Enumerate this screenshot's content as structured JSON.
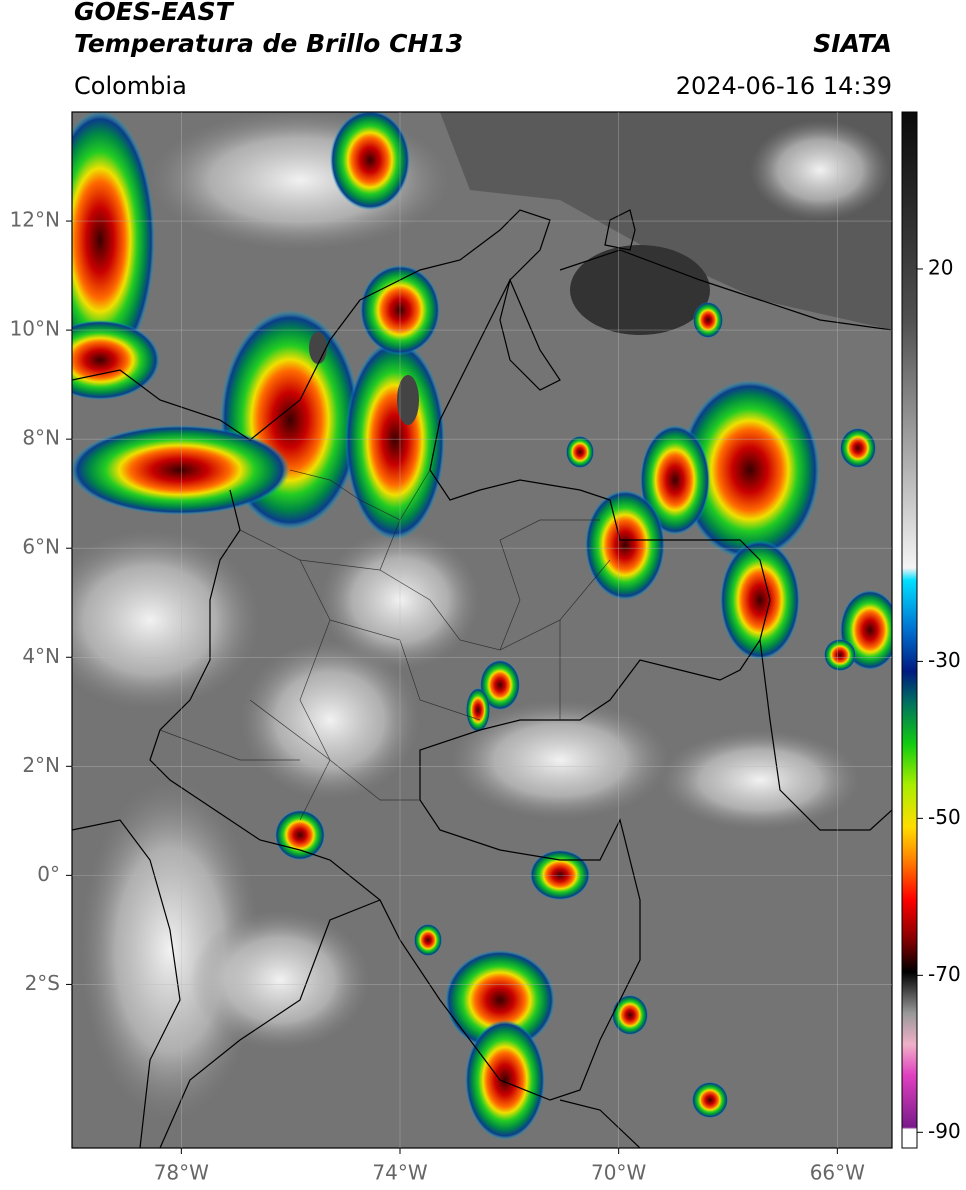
{
  "header": {
    "title": "GOES-EAST",
    "subtitle": "Temperatura de Brillo CH13",
    "source": "SIATA",
    "region": "Colombia",
    "timestamp": "2024-06-16 14:39"
  },
  "map": {
    "xlim": [
      -80,
      -65
    ],
    "ylim": [
      -5,
      14
    ],
    "xticks": [
      {
        "value": -78,
        "label": "78°W"
      },
      {
        "value": -74,
        "label": "74°W"
      },
      {
        "value": -70,
        "label": "70°W"
      },
      {
        "value": -66,
        "label": "66°W"
      }
    ],
    "yticks": [
      {
        "value": 12,
        "label": "12°N"
      },
      {
        "value": 10,
        "label": "10°N"
      },
      {
        "value": 8,
        "label": "8°N"
      },
      {
        "value": 6,
        "label": "6°N"
      },
      {
        "value": 4,
        "label": "4°N"
      },
      {
        "value": 2,
        "label": "2°N"
      },
      {
        "value": 0,
        "label": "0°"
      },
      {
        "value": -2,
        "label": "2°S"
      }
    ],
    "grid": true
  },
  "colorbar": {
    "lim": [
      -92,
      40
    ],
    "ticks": [
      20,
      -30,
      -50,
      -70,
      -90
    ]
  }
}
